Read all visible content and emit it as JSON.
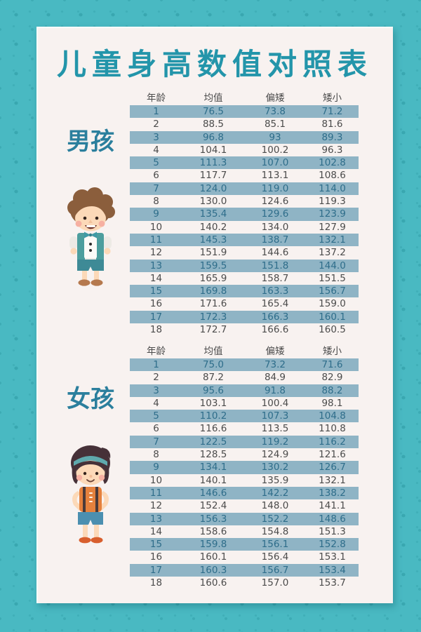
{
  "page": {
    "title": "儿童身高数值对照表"
  },
  "palette": {
    "background": "#49b9c2",
    "pattern_dot": "#2f9eaa",
    "card": "#f8f2f0",
    "title_text": "#2395aa",
    "section_label_text": "#2b7f9d",
    "stripe_row": "#8fb4c5",
    "stripe_text": "#2e6d8a",
    "body_text": "#4b4b4b"
  },
  "chart_data": [
    {
      "type": "table",
      "section": "男孩",
      "columns": [
        "年龄",
        "均值",
        "偏矮",
        "矮小"
      ],
      "rows": [
        [
          "1",
          "76.5",
          "73.8",
          "71.2"
        ],
        [
          "2",
          "88.5",
          "85.1",
          "81.6"
        ],
        [
          "3",
          "96.8",
          "93",
          "89.3"
        ],
        [
          "4",
          "104.1",
          "100.2",
          "96.3"
        ],
        [
          "5",
          "111.3",
          "107.0",
          "102.8"
        ],
        [
          "6",
          "117.7",
          "113.1",
          "108.6"
        ],
        [
          "7",
          "124.0",
          "119.0",
          "114.0"
        ],
        [
          "8",
          "130.0",
          "124.6",
          "119.3"
        ],
        [
          "9",
          "135.4",
          "129.6",
          "123.9"
        ],
        [
          "10",
          "140.2",
          "134.0",
          "127.9"
        ],
        [
          "11",
          "145.3",
          "138.7",
          "132.1"
        ],
        [
          "12",
          "151.9",
          "144.6",
          "137.2"
        ],
        [
          "13",
          "159.5",
          "151.8",
          "144.0"
        ],
        [
          "14",
          "165.9",
          "158.7",
          "151.5"
        ],
        [
          "15",
          "169.8",
          "163.3",
          "156.7"
        ],
        [
          "16",
          "171.6",
          "165.4",
          "159.0"
        ],
        [
          "17",
          "172.3",
          "166.3",
          "160.1"
        ],
        [
          "18",
          "172.7",
          "166.6",
          "160.5"
        ]
      ]
    },
    {
      "type": "table",
      "section": "女孩",
      "columns": [
        "年龄",
        "均值",
        "偏矮",
        "矮小"
      ],
      "rows": [
        [
          "1",
          "75.0",
          "73.2",
          "71.6"
        ],
        [
          "2",
          "87.2",
          "84.9",
          "82.9"
        ],
        [
          "3",
          "95.6",
          "91.8",
          "88.2"
        ],
        [
          "4",
          "103.1",
          "100.4",
          "98.1"
        ],
        [
          "5",
          "110.2",
          "107.3",
          "104.8"
        ],
        [
          "6",
          "116.6",
          "113.5",
          "110.8"
        ],
        [
          "7",
          "122.5",
          "119.2",
          "116.2"
        ],
        [
          "8",
          "128.5",
          "124.9",
          "121.6"
        ],
        [
          "9",
          "134.1",
          "130.2",
          "126.7"
        ],
        [
          "10",
          "140.1",
          "135.9",
          "132.1"
        ],
        [
          "11",
          "146.6",
          "142.2",
          "138.2"
        ],
        [
          "12",
          "152.4",
          "148.0",
          "141.1"
        ],
        [
          "13",
          "156.3",
          "152.2",
          "148.6"
        ],
        [
          "14",
          "158.6",
          "154.8",
          "151.3"
        ],
        [
          "15",
          "159.8",
          "156.1",
          "152.8"
        ],
        [
          "16",
          "160.1",
          "156.4",
          "153.1"
        ],
        [
          "17",
          "160.3",
          "156.7",
          "153.4"
        ],
        [
          "18",
          "160.6",
          "157.0",
          "153.7"
        ]
      ]
    }
  ]
}
